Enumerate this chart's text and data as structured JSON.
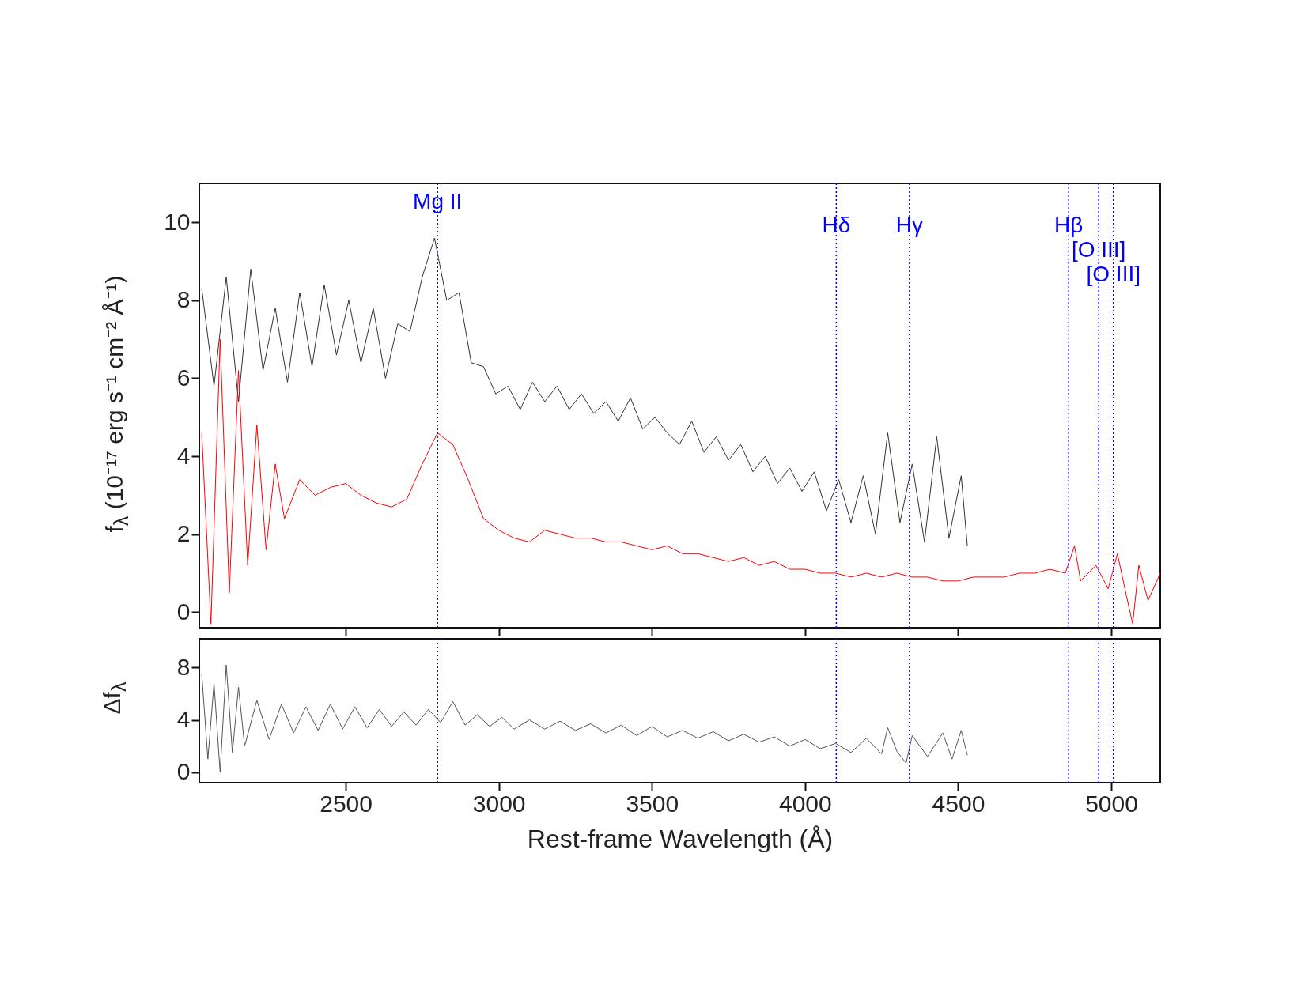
{
  "chart_data": [
    {
      "type": "line",
      "ylabel": "f$_{λ}$ (10⁻¹⁷ erg s⁻¹ cm⁻² Å⁻¹)",
      "xlim": [
        2022,
        5160
      ],
      "xticks": [
        2500,
        3000,
        3500,
        4000,
        4500,
        5000
      ],
      "ylim": [
        -0.4,
        11
      ],
      "yticks": [
        0,
        2,
        4,
        6,
        8,
        10
      ],
      "tick_labels": "y",
      "line_style": "solid",
      "series": [
        {
          "color": "#333333",
          "x": [
            2030,
            2070,
            2110,
            2150,
            2190,
            2230,
            2270,
            2310,
            2350,
            2390,
            2430,
            2470,
            2510,
            2550,
            2590,
            2630,
            2670,
            2710,
            2750,
            2790,
            2830,
            2870,
            2910,
            2950,
            2990,
            3030,
            3070,
            3110,
            3150,
            3190,
            3230,
            3270,
            3310,
            3350,
            3390,
            3430,
            3470,
            3510,
            3550,
            3590,
            3630,
            3670,
            3710,
            3750,
            3790,
            3830,
            3870,
            3910,
            3950,
            3990,
            4030,
            4070,
            4110,
            4150,
            4190,
            4230,
            4270,
            4310,
            4350,
            4390,
            4430,
            4470,
            4510,
            4530
          ],
          "values": [
            8.3,
            5.8,
            8.6,
            5.4,
            8.8,
            6.2,
            7.8,
            5.9,
            8.2,
            6.3,
            8.4,
            6.6,
            8.0,
            6.4,
            7.8,
            6.0,
            7.4,
            7.2,
            8.6,
            9.6,
            8.0,
            8.2,
            6.4,
            6.3,
            5.6,
            5.8,
            5.2,
            5.9,
            5.4,
            5.8,
            5.2,
            5.6,
            5.1,
            5.4,
            4.9,
            5.5,
            4.7,
            5.0,
            4.6,
            4.3,
            4.9,
            4.1,
            4.5,
            3.9,
            4.3,
            3.6,
            4.0,
            3.3,
            3.7,
            3.1,
            3.6,
            2.6,
            3.4,
            2.3,
            3.5,
            2.0,
            4.6,
            2.3,
            3.8,
            1.8,
            4.5,
            1.9,
            3.5,
            1.7
          ]
        },
        {
          "color": "#ff0000",
          "x": [
            2030,
            2060,
            2090,
            2120,
            2150,
            2180,
            2210,
            2240,
            2270,
            2300,
            2350,
            2400,
            2450,
            2500,
            2550,
            2600,
            2650,
            2700,
            2750,
            2800,
            2850,
            2900,
            2950,
            3000,
            3050,
            3100,
            3150,
            3200,
            3250,
            3300,
            3350,
            3400,
            3450,
            3500,
            3550,
            3600,
            3650,
            3700,
            3750,
            3800,
            3850,
            3900,
            3950,
            4000,
            4050,
            4100,
            4150,
            4200,
            4250,
            4300,
            4350,
            4400,
            4450,
            4500,
            4550,
            4600,
            4650,
            4700,
            4750,
            4800,
            4850,
            4880,
            4900,
            4950,
            4990,
            5020,
            5050,
            5070,
            5090,
            5120,
            5160
          ],
          "values": [
            4.6,
            -0.3,
            7.0,
            0.5,
            6.2,
            1.2,
            4.8,
            1.6,
            3.8,
            2.4,
            3.4,
            3.0,
            3.2,
            3.3,
            3.0,
            2.8,
            2.7,
            2.9,
            3.8,
            4.6,
            4.3,
            3.4,
            2.4,
            2.1,
            1.9,
            1.8,
            2.1,
            2.0,
            1.9,
            1.9,
            1.8,
            1.8,
            1.7,
            1.6,
            1.7,
            1.5,
            1.5,
            1.4,
            1.3,
            1.4,
            1.2,
            1.3,
            1.1,
            1.1,
            1.0,
            1.0,
            0.9,
            1.0,
            0.9,
            1.0,
            0.9,
            0.9,
            0.8,
            0.8,
            0.9,
            0.9,
            0.9,
            1.0,
            1.0,
            1.1,
            1.0,
            1.7,
            0.8,
            1.2,
            0.6,
            1.5,
            0.4,
            -0.3,
            1.2,
            0.3,
            1.0
          ]
        }
      ],
      "ref_lines": [
        {
          "axis": "x",
          "value": 2800,
          "label": "Mg II",
          "color": "#0000ff",
          "line_style": "dotted"
        },
        {
          "axis": "x",
          "value": 4102,
          "label": "Hδ",
          "color": "#0000ff",
          "line_style": "dotted"
        },
        {
          "axis": "x",
          "value": 4341,
          "label": "Hγ",
          "color": "#0000ff",
          "line_style": "dotted"
        },
        {
          "axis": "x",
          "value": 4861,
          "label": "Hβ",
          "color": "#0000ff",
          "line_style": "dotted"
        },
        {
          "axis": "x",
          "value": 4959,
          "label": "[O III]",
          "color": "#0000ff",
          "line_style": "dotted"
        },
        {
          "axis": "x",
          "value": 5007,
          "label": "[O III]",
          "color": "#0000ff",
          "line_style": "dotted"
        }
      ]
    },
    {
      "type": "line",
      "ylabel": "Δf$_{λ}$",
      "xlabel": "Rest-frame Wavelength  (Å)",
      "xlim": [
        2022,
        5160
      ],
      "xticks": [
        2500,
        3000,
        3500,
        4000,
        4500,
        5000
      ],
      "ylim": [
        -0.8,
        10.2
      ],
      "yticks": [
        0,
        4,
        8
      ],
      "line_style": "solid",
      "series": [
        {
          "color": "#555555",
          "x": [
            2030,
            2050,
            2070,
            2090,
            2110,
            2130,
            2150,
            2170,
            2210,
            2250,
            2290,
            2330,
            2370,
            2410,
            2450,
            2490,
            2530,
            2570,
            2610,
            2650,
            2690,
            2730,
            2770,
            2810,
            2850,
            2890,
            2930,
            2970,
            3010,
            3050,
            3100,
            3150,
            3200,
            3250,
            3300,
            3350,
            3400,
            3450,
            3500,
            3550,
            3600,
            3650,
            3700,
            3750,
            3800,
            3850,
            3900,
            3950,
            4000,
            4050,
            4100,
            4150,
            4200,
            4250,
            4270,
            4300,
            4330,
            4350,
            4400,
            4450,
            4480,
            4510,
            4530
          ],
          "values": [
            7.5,
            1.0,
            6.8,
            0.0,
            8.2,
            1.5,
            6.5,
            2.0,
            5.5,
            2.5,
            5.2,
            3.0,
            5.0,
            3.2,
            5.2,
            3.3,
            5.0,
            3.4,
            4.8,
            3.5,
            4.6,
            3.6,
            4.8,
            3.8,
            5.4,
            3.6,
            4.4,
            3.5,
            4.2,
            3.3,
            4.0,
            3.3,
            3.9,
            3.2,
            3.7,
            3.0,
            3.6,
            2.8,
            3.5,
            2.7,
            3.2,
            2.6,
            3.1,
            2.4,
            2.9,
            2.3,
            2.7,
            2.0,
            2.5,
            1.8,
            2.2,
            1.5,
            2.6,
            1.4,
            3.4,
            1.6,
            0.7,
            2.8,
            1.2,
            3.0,
            1.0,
            3.2,
            1.3
          ]
        }
      ],
      "ref_lines": [
        {
          "axis": "x",
          "value": 2800,
          "color": "#0000ff",
          "line_style": "dotted"
        },
        {
          "axis": "x",
          "value": 4102,
          "color": "#0000ff",
          "line_style": "dotted"
        },
        {
          "axis": "x",
          "value": 4341,
          "color": "#0000ff",
          "line_style": "dotted"
        },
        {
          "axis": "x",
          "value": 4861,
          "color": "#0000ff",
          "line_style": "dotted"
        },
        {
          "axis": "x",
          "value": 4959,
          "color": "#0000ff",
          "line_style": "dotted"
        },
        {
          "axis": "x",
          "value": 5007,
          "color": "#0000ff",
          "line_style": "dotted"
        }
      ]
    }
  ]
}
